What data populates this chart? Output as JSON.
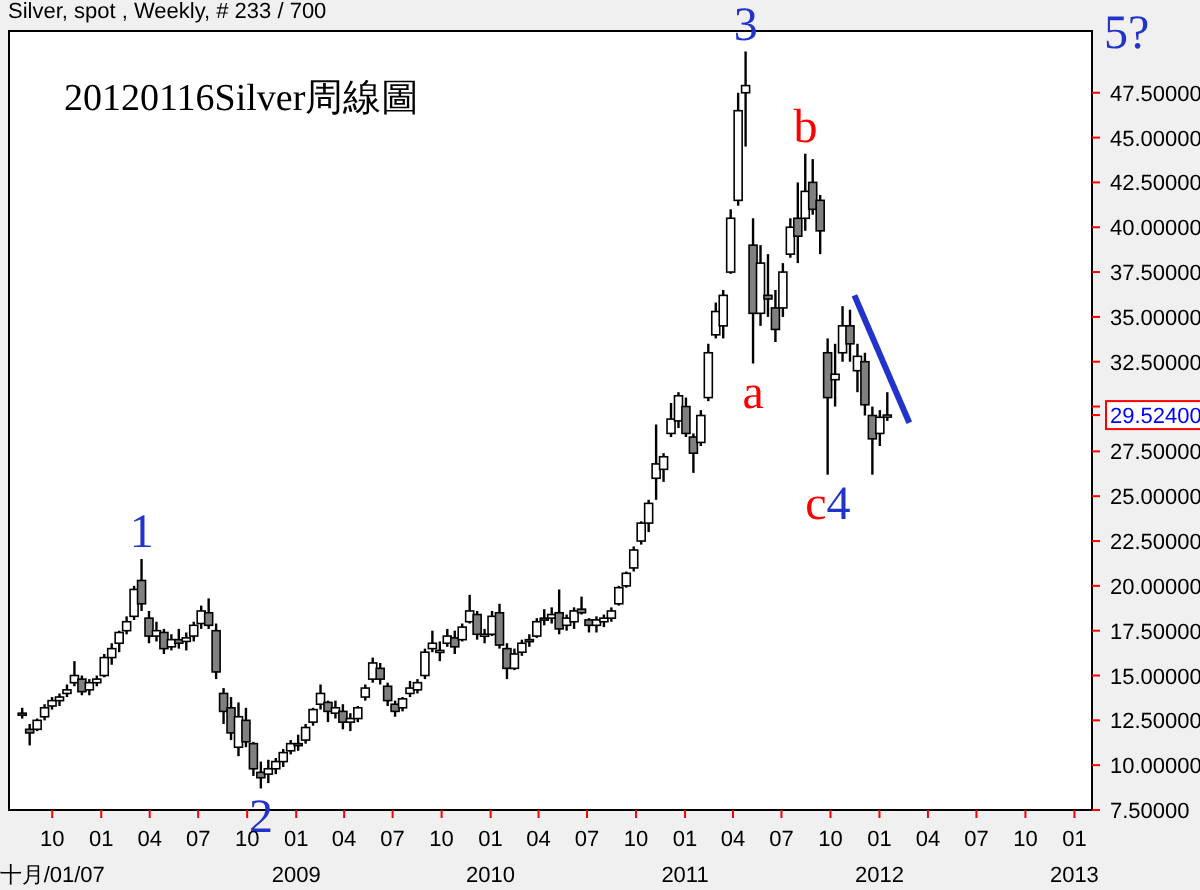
{
  "chart_data": {
    "type": "candlestick",
    "title": "20120116Silver周線圖",
    "subtitle": "Silver, spot , Weekly, # 233 / 700",
    "color": "#000000",
    "x": [
      "2007-08-06",
      "2007-08-20",
      "2007-09-03",
      "2007-09-17",
      "2007-10-01",
      "2007-10-15",
      "2007-10-29",
      "2007-11-12",
      "2007-11-26",
      "2007-12-10",
      "2007-12-24",
      "2008-01-07",
      "2008-01-21",
      "2008-02-04",
      "2008-02-18",
      "2008-03-03",
      "2008-03-17",
      "2008-03-31",
      "2008-04-14",
      "2008-04-28",
      "2008-05-12",
      "2008-05-26",
      "2008-06-09",
      "2008-06-23",
      "2008-07-07",
      "2008-07-21",
      "2008-08-04",
      "2008-08-18",
      "2008-09-01",
      "2008-09-15",
      "2008-09-29",
      "2008-10-13",
      "2008-10-27",
      "2008-11-10",
      "2008-11-24",
      "2008-12-08",
      "2008-12-22",
      "2009-01-05",
      "2009-01-19",
      "2009-02-02",
      "2009-02-16",
      "2009-03-02",
      "2009-03-16",
      "2009-03-30",
      "2009-04-13",
      "2009-04-27",
      "2009-05-11",
      "2009-05-25",
      "2009-06-08",
      "2009-06-22",
      "2009-07-06",
      "2009-07-20",
      "2009-08-03",
      "2009-08-17",
      "2009-08-31",
      "2009-09-14",
      "2009-09-28",
      "2009-10-12",
      "2009-10-26",
      "2009-11-09",
      "2009-11-23",
      "2009-12-07",
      "2009-12-21",
      "2010-01-04",
      "2010-01-18",
      "2010-02-01",
      "2010-02-15",
      "2010-03-01",
      "2010-03-15",
      "2010-03-29",
      "2010-04-12",
      "2010-04-26",
      "2010-05-10",
      "2010-05-24",
      "2010-06-07",
      "2010-06-21",
      "2010-07-05",
      "2010-07-19",
      "2010-08-02",
      "2010-08-16",
      "2010-08-30",
      "2010-09-13",
      "2010-09-27",
      "2010-10-11",
      "2010-10-25",
      "2010-11-08",
      "2010-11-22",
      "2010-12-06",
      "2010-12-20",
      "2011-01-03",
      "2011-01-17",
      "2011-01-31",
      "2011-02-14",
      "2011-02-28",
      "2011-03-14",
      "2011-03-28",
      "2011-04-11",
      "2011-04-25",
      "2011-05-09",
      "2011-05-23",
      "2011-06-06",
      "2011-06-20",
      "2011-07-04",
      "2011-07-18",
      "2011-08-01",
      "2011-08-15",
      "2011-08-29",
      "2011-09-12",
      "2011-09-26",
      "2011-10-10",
      "2011-10-24",
      "2011-11-07",
      "2011-11-21",
      "2011-12-05",
      "2011-12-19",
      "2012-01-02",
      "2012-01-16"
    ],
    "ohlc": [
      [
        12.9,
        13.2,
        12.6,
        12.8
      ],
      [
        12.0,
        12.3,
        11.1,
        11.8
      ],
      [
        12.0,
        12.6,
        11.9,
        12.5
      ],
      [
        12.7,
        13.4,
        12.5,
        13.2
      ],
      [
        13.3,
        13.8,
        13.1,
        13.6
      ],
      [
        13.6,
        14.0,
        13.3,
        13.8
      ],
      [
        14.0,
        14.5,
        13.8,
        14.2
      ],
      [
        14.6,
        15.8,
        14.4,
        15.0
      ],
      [
        14.8,
        15.0,
        13.9,
        14.1
      ],
      [
        14.2,
        14.8,
        13.9,
        14.6
      ],
      [
        14.6,
        15.0,
        14.4,
        14.8
      ],
      [
        15.0,
        16.2,
        14.9,
        16.0
      ],
      [
        16.0,
        16.8,
        15.6,
        16.5
      ],
      [
        16.8,
        17.5,
        16.3,
        17.4
      ],
      [
        17.5,
        18.3,
        17.3,
        18.0
      ],
      [
        18.3,
        20.0,
        18.1,
        19.8
      ],
      [
        20.3,
        21.5,
        18.6,
        19.0
      ],
      [
        18.2,
        18.6,
        16.8,
        17.2
      ],
      [
        17.2,
        18.0,
        16.9,
        17.5
      ],
      [
        17.4,
        17.6,
        16.2,
        16.5
      ],
      [
        16.6,
        17.3,
        16.4,
        17.0
      ],
      [
        17.0,
        17.6,
        16.5,
        16.8
      ],
      [
        16.9,
        17.4,
        16.4,
        17.1
      ],
      [
        17.2,
        18.0,
        16.9,
        17.8
      ],
      [
        17.9,
        18.9,
        17.6,
        18.6
      ],
      [
        18.5,
        19.3,
        17.6,
        17.8
      ],
      [
        17.5,
        17.9,
        14.8,
        15.2
      ],
      [
        14.0,
        14.3,
        12.3,
        13.0
      ],
      [
        13.2,
        13.8,
        11.4,
        11.8
      ],
      [
        11.0,
        13.5,
        10.5,
        12.7
      ],
      [
        12.5,
        13.2,
        11.0,
        11.3
      ],
      [
        11.2,
        11.3,
        9.4,
        9.8
      ],
      [
        9.6,
        10.2,
        8.7,
        9.3
      ],
      [
        9.5,
        10.3,
        9.0,
        9.8
      ],
      [
        9.8,
        10.4,
        9.5,
        10.2
      ],
      [
        10.2,
        10.9,
        9.9,
        10.7
      ],
      [
        10.8,
        11.4,
        10.6,
        11.2
      ],
      [
        11.2,
        11.7,
        10.8,
        11.1
      ],
      [
        11.4,
        12.3,
        11.2,
        12.1
      ],
      [
        12.4,
        13.2,
        12.2,
        13.1
      ],
      [
        13.4,
        14.5,
        13.1,
        14.0
      ],
      [
        13.5,
        13.6,
        12.4,
        13.0
      ],
      [
        12.9,
        13.6,
        12.6,
        13.2
      ],
      [
        13.0,
        13.4,
        12.0,
        12.4
      ],
      [
        12.4,
        12.9,
        11.9,
        12.6
      ],
      [
        12.6,
        13.3,
        12.4,
        13.2
      ],
      [
        13.8,
        14.5,
        13.6,
        14.3
      ],
      [
        14.8,
        16.0,
        14.6,
        15.7
      ],
      [
        15.4,
        15.7,
        14.5,
        14.8
      ],
      [
        14.4,
        14.6,
        13.3,
        13.6
      ],
      [
        13.4,
        13.6,
        12.7,
        13.0
      ],
      [
        13.2,
        13.8,
        13.0,
        13.7
      ],
      [
        14.0,
        14.7,
        13.8,
        14.3
      ],
      [
        14.2,
        14.8,
        14.0,
        14.6
      ],
      [
        15.0,
        16.5,
        14.8,
        16.3
      ],
      [
        16.5,
        17.5,
        16.3,
        16.8
      ],
      [
        16.4,
        16.9,
        15.8,
        16.4
      ],
      [
        16.8,
        17.6,
        16.6,
        17.2
      ],
      [
        17.1,
        17.5,
        16.2,
        16.6
      ],
      [
        17.0,
        17.9,
        16.9,
        17.7
      ],
      [
        18.0,
        19.5,
        17.9,
        18.6
      ],
      [
        18.4,
        18.6,
        17.0,
        17.3
      ],
      [
        17.2,
        17.6,
        16.8,
        17.3
      ],
      [
        17.3,
        18.6,
        17.2,
        18.3
      ],
      [
        18.5,
        19.0,
        16.5,
        16.7
      ],
      [
        16.5,
        16.8,
        14.8,
        15.4
      ],
      [
        15.4,
        16.5,
        15.3,
        16.2
      ],
      [
        16.3,
        17.0,
        16.1,
        16.8
      ],
      [
        17.0,
        17.3,
        16.6,
        16.9
      ],
      [
        17.2,
        18.2,
        17.1,
        18.0
      ],
      [
        18.2,
        18.7,
        17.8,
        18.1
      ],
      [
        18.2,
        18.8,
        17.9,
        18.4
      ],
      [
        18.5,
        19.8,
        17.3,
        17.6
      ],
      [
        17.8,
        18.4,
        17.5,
        18.2
      ],
      [
        18.0,
        18.8,
        17.6,
        18.6
      ],
      [
        18.7,
        19.4,
        18.4,
        18.5
      ],
      [
        18.1,
        18.2,
        17.4,
        17.8
      ],
      [
        17.8,
        18.3,
        17.4,
        18.1
      ],
      [
        18.0,
        18.4,
        17.7,
        18.2
      ],
      [
        18.2,
        18.8,
        18.0,
        18.6
      ],
      [
        19.0,
        20.0,
        18.9,
        19.9
      ],
      [
        20.0,
        20.8,
        19.9,
        20.7
      ],
      [
        21.0,
        22.2,
        20.8,
        22.0
      ],
      [
        22.5,
        23.6,
        22.3,
        23.5
      ],
      [
        23.5,
        24.8,
        23.0,
        24.6
      ],
      [
        26.0,
        29.0,
        24.8,
        26.8
      ],
      [
        26.5,
        27.4,
        25.8,
        27.2
      ],
      [
        28.5,
        30.2,
        28.3,
        29.3
      ],
      [
        29.2,
        30.8,
        28.8,
        30.6
      ],
      [
        30.0,
        30.5,
        28.3,
        28.5
      ],
      [
        28.3,
        28.5,
        26.3,
        27.4
      ],
      [
        28.0,
        29.8,
        27.8,
        29.5
      ],
      [
        30.5,
        33.5,
        30.3,
        33.0
      ],
      [
        34.0,
        35.8,
        33.8,
        35.3
      ],
      [
        34.5,
        36.5,
        33.8,
        36.2
      ],
      [
        37.5,
        41.0,
        37.4,
        40.5
      ],
      [
        41.5,
        47.5,
        41.2,
        46.5
      ],
      [
        47.5,
        49.8,
        44.5,
        47.9
      ],
      [
        39.0,
        40.5,
        32.4,
        35.2
      ],
      [
        35.2,
        39.0,
        34.5,
        38.0
      ],
      [
        36.2,
        38.5,
        35.0,
        36.0
      ],
      [
        35.5,
        36.5,
        33.6,
        34.3
      ],
      [
        35.5,
        38.0,
        35.0,
        37.5
      ],
      [
        38.5,
        40.5,
        38.3,
        40.0
      ],
      [
        40.5,
        42.5,
        38.0,
        39.5
      ],
      [
        40.5,
        44.1,
        39.8,
        42.0
      ],
      [
        42.5,
        43.8,
        40.7,
        41.0
      ],
      [
        41.5,
        41.8,
        38.5,
        39.8
      ],
      [
        33.0,
        33.8,
        26.2,
        30.5
      ],
      [
        31.5,
        33.5,
        30.0,
        31.8
      ],
      [
        33.0,
        35.6,
        32.5,
        34.5
      ],
      [
        34.5,
        35.4,
        32.5,
        33.5
      ],
      [
        32.0,
        33.5,
        30.8,
        32.8
      ],
      [
        32.5,
        33.0,
        29.5,
        30.1
      ],
      [
        29.5,
        30.0,
        26.2,
        28.2
      ],
      [
        28.5,
        29.8,
        27.8,
        29.4
      ],
      [
        29.5,
        30.8,
        29.2,
        29.524
      ]
    ],
    "series": [
      {
        "type": "line",
        "color": "#2233cc",
        "x": [
          "2011-11-15",
          "2012-02-26"
        ],
        "values": [
          36.2,
          29.1
        ]
      }
    ],
    "xlim": [
      "2007-07-10",
      "2013-02-03"
    ],
    "xticks": [
      {
        "value": "2007-10-01",
        "label": "10\n十月/01/07"
      },
      {
        "value": "2008-01-01",
        "label": "01"
      },
      {
        "value": "2008-04-01",
        "label": "04"
      },
      {
        "value": "2008-07-01",
        "label": "07"
      },
      {
        "value": "2008-10-01",
        "label": "10"
      },
      {
        "value": "2009-01-01",
        "label": "01\n2009"
      },
      {
        "value": "2009-04-01",
        "label": "04"
      },
      {
        "value": "2009-07-01",
        "label": "07"
      },
      {
        "value": "2009-10-01",
        "label": "10"
      },
      {
        "value": "2010-01-01",
        "label": "01\n2010"
      },
      {
        "value": "2010-04-01",
        "label": "04"
      },
      {
        "value": "2010-07-01",
        "label": "07"
      },
      {
        "value": "2010-10-01",
        "label": "10"
      },
      {
        "value": "2011-01-01",
        "label": "01\n2011"
      },
      {
        "value": "2011-04-01",
        "label": "04"
      },
      {
        "value": "2011-07-01",
        "label": "07"
      },
      {
        "value": "2011-10-01",
        "label": "10"
      },
      {
        "value": "2012-01-01",
        "label": "01\n2012"
      },
      {
        "value": "2012-04-01",
        "label": "04"
      },
      {
        "value": "2012-07-01",
        "label": "07"
      },
      {
        "value": "2012-10-01",
        "label": "10"
      },
      {
        "value": "2013-01-01",
        "label": "01\n2013"
      }
    ],
    "ylim": [
      7.5,
      51
    ],
    "yticks": [
      {
        "value": 7.5,
        "label": "7.50000"
      },
      {
        "value": 10,
        "label": "10.00000"
      },
      {
        "value": 12.5,
        "label": "12.50000"
      },
      {
        "value": 15,
        "label": "15.00000"
      },
      {
        "value": 17.5,
        "label": "17.50000"
      },
      {
        "value": 20,
        "label": "20.00000"
      },
      {
        "value": 22.5,
        "label": "22.50000"
      },
      {
        "value": 25,
        "label": "25.00000"
      },
      {
        "value": 27.5,
        "label": "27.50000"
      },
      {
        "value": 30,
        "label": null
      },
      {
        "value": 32.5,
        "label": "32.50000"
      },
      {
        "value": 35,
        "label": "35.00000"
      },
      {
        "value": 37.5,
        "label": "37.50000"
      },
      {
        "value": 40,
        "label": "40.00000"
      },
      {
        "value": 42.5,
        "label": "42.50000"
      },
      {
        "value": 45,
        "label": "45.00000"
      },
      {
        "value": 47.5,
        "label": "47.50000"
      },
      {
        "value": 29.524,
        "label": "29.52400"
      }
    ],
    "annotations": [
      {
        "text": "1",
        "x": "2008-03-17",
        "y": 21.5
      },
      {
        "text": "2",
        "x": "2008-10-27",
        "y": 8.7
      },
      {
        "text": "3",
        "x": "2011-04-25",
        "y": 49.8
      },
      {
        "text": "a",
        "x": "2011-05-09",
        "y": 32.4
      },
      {
        "text": "b",
        "x": "2011-08-15",
        "y": 44.1
      },
      {
        "text": "c4",
        "x": "2011-09-26",
        "y": 26.2
      },
      "5?"
    ]
  }
}
